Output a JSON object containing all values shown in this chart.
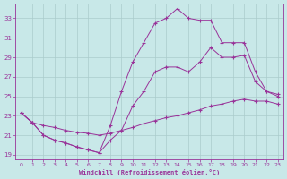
{
  "xlabel": "Windchill (Refroidissement éolien,°C)",
  "bg_color": "#c8e8e8",
  "line_color": "#993399",
  "grid_color": "#aacccc",
  "xlim": [
    -0.5,
    23.5
  ],
  "ylim": [
    18.5,
    34.5
  ],
  "yticks": [
    19,
    21,
    23,
    25,
    27,
    29,
    31,
    33
  ],
  "xticks": [
    0,
    1,
    2,
    3,
    4,
    5,
    6,
    7,
    8,
    9,
    10,
    11,
    12,
    13,
    14,
    15,
    16,
    17,
    18,
    19,
    20,
    21,
    22,
    23
  ],
  "line1_x": [
    0,
    1,
    2,
    3,
    4,
    5,
    6,
    7,
    8,
    9,
    10,
    11,
    12,
    13,
    14,
    15,
    16,
    17,
    18,
    19,
    20,
    21,
    22,
    23
  ],
  "line1_y": [
    23.3,
    22.3,
    22.0,
    21.8,
    21.5,
    21.3,
    21.2,
    21.0,
    21.2,
    21.5,
    21.8,
    22.2,
    22.5,
    22.8,
    23.0,
    23.3,
    23.6,
    24.0,
    24.2,
    24.5,
    24.7,
    24.5,
    24.5,
    24.2
  ],
  "line2_x": [
    0,
    1,
    2,
    3,
    4,
    5,
    6,
    7,
    8,
    9,
    10,
    11,
    12,
    13,
    14,
    15,
    16,
    17,
    18,
    19,
    20,
    21,
    22,
    23
  ],
  "line2_y": [
    23.3,
    22.3,
    21.0,
    20.5,
    20.2,
    19.8,
    19.5,
    19.2,
    20.5,
    21.5,
    24.0,
    25.5,
    27.5,
    28.0,
    28.0,
    27.5,
    28.5,
    30.0,
    29.0,
    29.0,
    29.2,
    26.5,
    25.5,
    25.2
  ],
  "line3_x": [
    0,
    1,
    2,
    3,
    4,
    5,
    6,
    7,
    8,
    9,
    10,
    11,
    12,
    13,
    14,
    15,
    16,
    17,
    18,
    19,
    20,
    21,
    22,
    23
  ],
  "line3_y": [
    23.3,
    22.3,
    21.0,
    20.5,
    20.2,
    19.8,
    19.5,
    19.2,
    22.0,
    25.5,
    28.5,
    30.5,
    32.5,
    33.0,
    34.0,
    33.0,
    32.8,
    32.8,
    30.5,
    30.5,
    30.5,
    27.5,
    25.5,
    25.0
  ]
}
